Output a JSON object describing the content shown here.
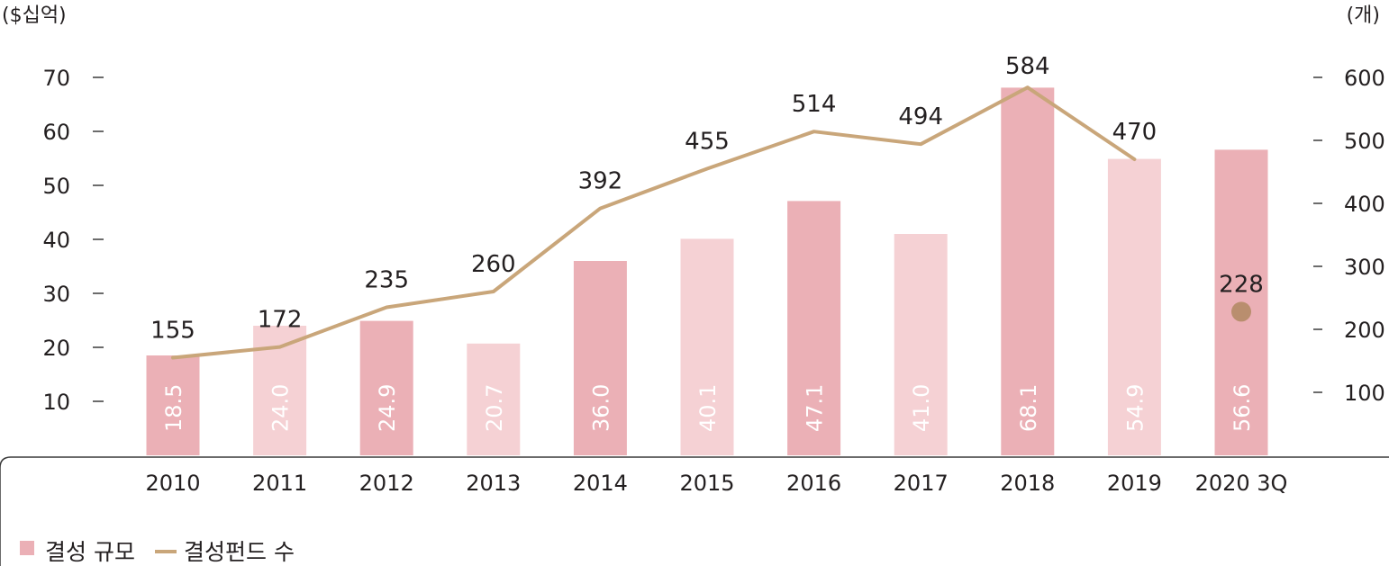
{
  "chart_data": {
    "type": "bar",
    "categories": [
      "2010",
      "2011",
      "2012",
      "2013",
      "2014",
      "2015",
      "2016",
      "2017",
      "2018",
      "2019",
      "2020 3Q"
    ],
    "series": [
      {
        "name": "결성 규모",
        "type": "bar",
        "axis": "left",
        "values": [
          18.5,
          24.0,
          24.9,
          20.7,
          36.0,
          40.1,
          47.1,
          41.0,
          68.1,
          54.9,
          56.6
        ],
        "labels": [
          "18.5",
          "24.0",
          "24.9",
          "20.7",
          "36.0",
          "40.1",
          "47.1",
          "41.0",
          "68.1",
          "54.9",
          "56.6"
        ]
      },
      {
        "name": "결성펀드 수",
        "type": "line",
        "axis": "right",
        "values": [
          155,
          172,
          235,
          260,
          392,
          455,
          514,
          494,
          584,
          470,
          228
        ],
        "line_until_index": 9,
        "marker_only_index": 10
      }
    ],
    "left_axis": {
      "unit": "($십억)",
      "ticks": [
        10,
        20,
        30,
        40,
        50,
        60,
        70
      ],
      "range": [
        0,
        70
      ]
    },
    "right_axis": {
      "unit": "(개)",
      "ticks": [
        100,
        200,
        300,
        400,
        500,
        600
      ],
      "range": [
        0,
        600
      ]
    },
    "colors": {
      "bar_dark": "#ebb0b6",
      "bar_light": "#f5d1d4",
      "line": "#c9a67a",
      "marker": "#b98e6e",
      "text": "#231f20",
      "axis": "#3a3a3a"
    },
    "legend": {
      "position": "bottom-left"
    },
    "grid": false
  }
}
